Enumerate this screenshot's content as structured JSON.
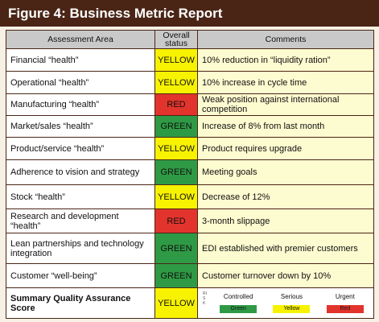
{
  "header": {
    "title": "Figure 4: Business Metric Report"
  },
  "table": {
    "columns": [
      "Assessment Area",
      "Overall status",
      "Comments"
    ],
    "rows": [
      {
        "area": "Financial “health”",
        "status": "YELLOW",
        "status_color": "#f7f200",
        "comment": "10% reduction in “liquidity ration”"
      },
      {
        "area": "Operational “health”",
        "status": "YELLOW",
        "status_color": "#f7f200",
        "comment": "10% increase in cycle time"
      },
      {
        "area": "Manufacturing “health”",
        "status": "RED",
        "status_color": "#e2342c",
        "comment": "Weak position against international competition"
      },
      {
        "area": "Market/sales “health”",
        "status": "GREEN",
        "status_color": "#2f9a45",
        "comment": "Increase of 8% from last month"
      },
      {
        "area": "Product/service “health”",
        "status": "YELLOW",
        "status_color": "#f7f200",
        "comment": "Product requires upgrade"
      },
      {
        "area": "Adherence to vision and strategy",
        "status": "GREEN",
        "status_color": "#2f9a45",
        "comment": "Meeting goals"
      },
      {
        "area": "Stock “health”",
        "status": "YELLOW",
        "status_color": "#f7f200",
        "comment": "Decrease of 12%"
      },
      {
        "area": "Research and development “health”",
        "status": "RED",
        "status_color": "#e2342c",
        "comment": "3-month slippage"
      },
      {
        "area": "Lean partnerships and technology integration",
        "status": "GREEN",
        "status_color": "#2f9a45",
        "comment": "EDI established with premier customers"
      },
      {
        "area": "Customer “well-being”",
        "status": "GREEN",
        "status_color": "#2f9a45",
        "comment": "Customer turnover down by 10%"
      }
    ],
    "summary": {
      "label": "Summary Quality Assurance Score",
      "status": "YELLOW",
      "status_color": "#f7f200",
      "legend": {
        "risk_label": "RISK",
        "levels": [
          {
            "label": "Controlled",
            "color_label": "Green",
            "color": "#2f9a45"
          },
          {
            "label": "Serious",
            "color_label": "Yellow",
            "color": "#f7f200"
          },
          {
            "label": "Urgent",
            "color_label": "Red",
            "color": "#e2342c"
          }
        ]
      }
    }
  }
}
